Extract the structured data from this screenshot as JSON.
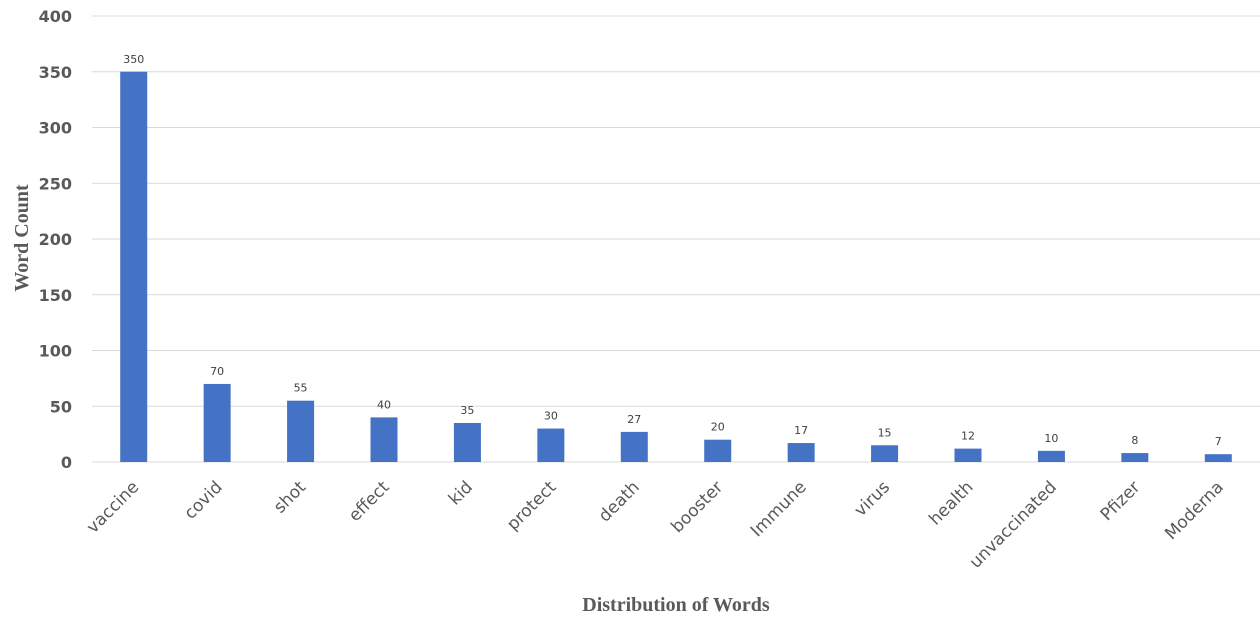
{
  "chart_data": {
    "type": "bar",
    "categories": [
      "vaccine",
      "covid",
      "shot",
      "effect",
      "kid",
      "protect",
      "death",
      "booster",
      "Immune",
      "virus",
      "health",
      "unvaccinated",
      "Pfizer",
      "Moderna"
    ],
    "values": [
      350,
      70,
      55,
      40,
      35,
      30,
      27,
      20,
      17,
      15,
      12,
      10,
      8,
      7
    ],
    "title": "",
    "xlabel": "Distribution of Words",
    "ylabel": "Word Count",
    "ylim": [
      0,
      400
    ],
    "yticks": [
      0,
      50,
      100,
      150,
      200,
      250,
      300,
      350,
      400
    ],
    "grid": true,
    "legend": "none",
    "colors": {
      "bar": "#4472c4",
      "grid": "#d9d9d9",
      "text": "#595959"
    },
    "data_labels": true
  }
}
